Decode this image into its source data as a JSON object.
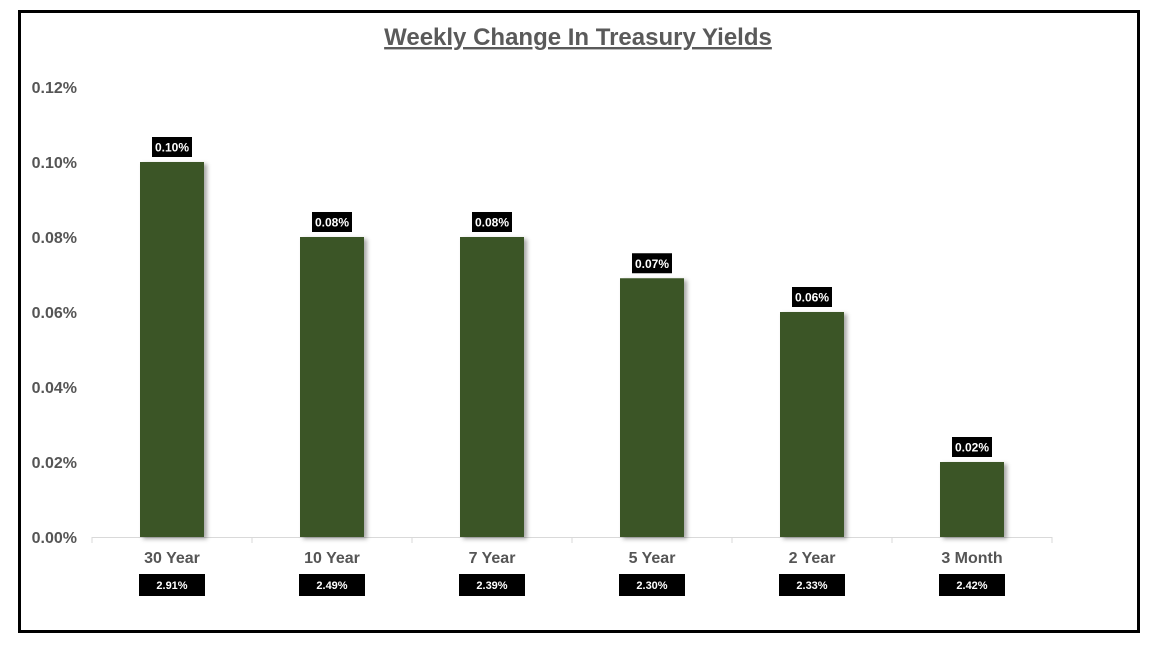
{
  "chart_data": {
    "type": "bar",
    "title": "Weekly Change In Treasury Yields",
    "categories": [
      "30 Year",
      "10 Year",
      "7 Year",
      "5 Year",
      "2 Year",
      "3 Month"
    ],
    "values": [
      0.1,
      0.08,
      0.08,
      0.069,
      0.06,
      0.02
    ],
    "data_labels": [
      "0.10%",
      "0.08%",
      "0.08%",
      "0.07%",
      "0.06%",
      "0.02%"
    ],
    "yield_labels": [
      "2.91%",
      "2.49%",
      "2.39%",
      "2.30%",
      "2.33%",
      "2.42%"
    ],
    "ylim": [
      0,
      0.12
    ],
    "yticks": [
      0,
      0.02,
      0.04,
      0.06,
      0.08,
      0.1,
      0.12
    ],
    "ytick_labels": [
      "0.00%",
      "0.02%",
      "0.04%",
      "0.06%",
      "0.08%",
      "0.10%",
      "0.12%"
    ],
    "xlabel": "",
    "ylabel": "",
    "grid": false,
    "legend": "none",
    "bar_color": "#3a5526",
    "label_bg_color": "#000000"
  }
}
